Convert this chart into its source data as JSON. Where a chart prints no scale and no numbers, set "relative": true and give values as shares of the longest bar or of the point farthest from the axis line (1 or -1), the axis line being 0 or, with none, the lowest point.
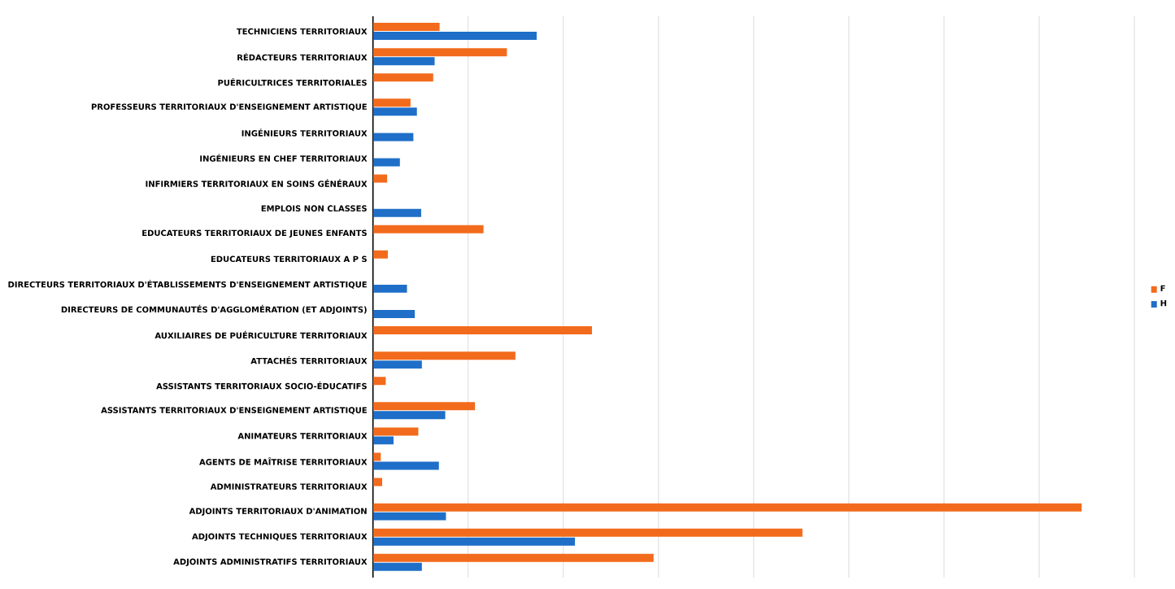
{
  "chart_data": {
    "type": "bar",
    "orientation": "horizontal",
    "relative": true,
    "grid": "x",
    "legend": "right",
    "categories": [
      "TECHNICIENS TERRITORIAUX",
      "RÉDACTEURS TERRITORIAUX",
      "PUÉRICULTRICES TERRITORIALES",
      "PROFESSEURS TERRITORIAUX D'ENSEIGNEMENT ARTISTIQUE",
      "INGÉNIEURS TERRITORIAUX",
      "INGÉNIEURS EN CHEF TERRITORIAUX",
      "INFIRMIERS TERRITORIAUX EN SOINS GÉNÉRAUX",
      "EMPLOIS NON CLASSES",
      "EDUCATEURS TERRITORIAUX DE JEUNES ENFANTS",
      "EDUCATEURS TERRITORIAUX A P S",
      "DIRECTEURS TERRITORIAUX D'ÉTABLISSEMENTS D'ENSEIGNEMENT ARTISTIQUE",
      "DIRECTEURS DE COMMUNAUTÉS D'AGGLOMÉRATION (ET ADJOINTS)",
      "AUXILIAIRES DE PUÉRICULTURE TERRITORIAUX",
      "ATTACHÉS TERRITORIAUX",
      "ASSISTANTS TERRITORIAUX SOCIO-ÉDUCATIFS",
      "ASSISTANTS TERRITORIAUX D'ENSEIGNEMENT ARTISTIQUE",
      "ANIMATEURS TERRITORIAUX",
      "AGENTS DE MAÎTRISE TERRITORIAUX",
      "ADMINISTRATEURS TERRITORIAUX",
      "ADJOINTS TERRITORIAUX D'ANIMATION",
      "ADJOINTS TECHNIQUES TERRITORIAUX",
      "ADJOINTS ADMINISTRATIFS TERRITORIAUX"
    ],
    "series": [
      {
        "name": "F",
        "color": "#f26b1d",
        "values": [
          0.094,
          0.189,
          0.085,
          0.053,
          null,
          null,
          0.02,
          null,
          0.156,
          0.021,
          null,
          null,
          0.309,
          0.201,
          0.018,
          0.144,
          0.064,
          0.011,
          0.013,
          1,
          0.606,
          0.396
        ]
      },
      {
        "name": "H",
        "color": "#1f6fc8",
        "values": [
          0.231,
          0.087,
          null,
          0.062,
          0.057,
          0.038,
          null,
          0.068,
          null,
          null,
          0.048,
          0.059,
          null,
          0.069,
          null,
          0.102,
          0.029,
          0.093,
          null,
          0.103,
          0.285,
          0.069
        ]
      }
    ]
  }
}
